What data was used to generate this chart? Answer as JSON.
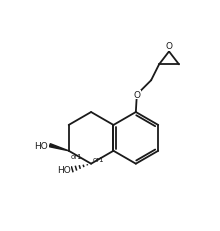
{
  "bg_color": "#ffffff",
  "line_color": "#1a1a1a",
  "lw": 1.3,
  "fs": 6.5,
  "figsize": [
    2.2,
    2.32
  ],
  "dpi": 100,
  "xlim": [
    0,
    11
  ],
  "ylim": [
    0,
    11.5
  ]
}
